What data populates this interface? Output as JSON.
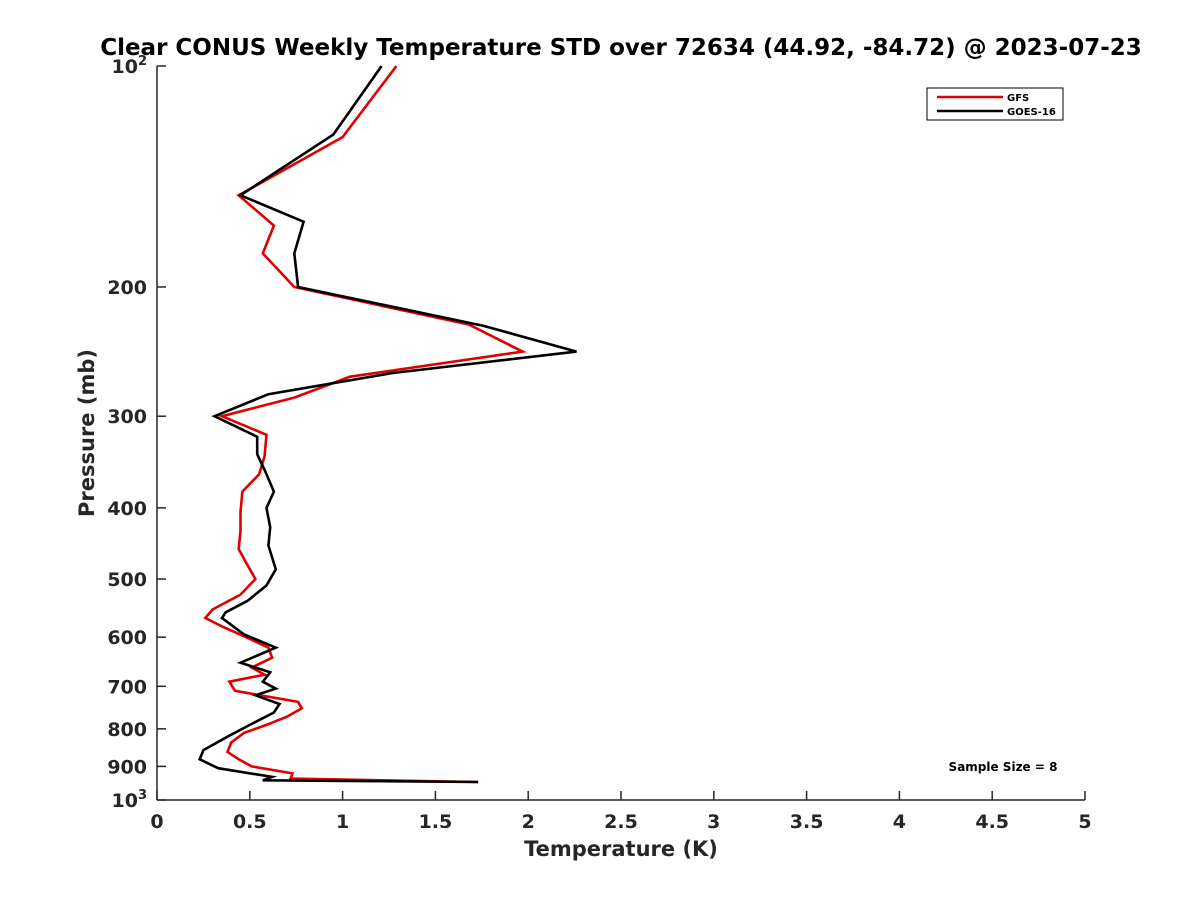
{
  "chart_data": {
    "type": "line",
    "title": "Clear CONUS Weekly Temperature STD over 72634 (44.92, -84.72) @ 2023-07-23",
    "xlabel": "Temperature (K)",
    "ylabel": "Pressure (mb)",
    "xlim": [
      0,
      5
    ],
    "ylim": [
      100,
      1000
    ],
    "y_scale": "log",
    "y_reversed": true,
    "x_ticks": [
      "0",
      "0.5",
      "1",
      "1.5",
      "2",
      "2.5",
      "3",
      "3.5",
      "4",
      "4.5",
      "5"
    ],
    "x_tick_values": [
      0,
      0.5,
      1,
      1.5,
      2,
      2.5,
      3,
      3.5,
      4,
      4.5,
      5
    ],
    "y_ticks": [
      {
        "value": 100,
        "base": "10",
        "exp": "2"
      },
      {
        "value": 200,
        "label": "200"
      },
      {
        "value": 300,
        "label": "300"
      },
      {
        "value": 400,
        "label": "400"
      },
      {
        "value": 500,
        "label": "500"
      },
      {
        "value": 600,
        "label": "600"
      },
      {
        "value": 700,
        "label": "700"
      },
      {
        "value": 800,
        "label": "800"
      },
      {
        "value": 900,
        "label": "900"
      },
      {
        "value": 1000,
        "base": "10",
        "exp": "3"
      }
    ],
    "legend": {
      "position": "top-right"
    },
    "annotation": "Sample Size = 8",
    "series": [
      {
        "name": "GFS",
        "color": "#e00000",
        "points": [
          [
            1.29,
            100
          ],
          [
            1.0,
            125
          ],
          [
            0.44,
            150
          ],
          [
            0.63,
            165
          ],
          [
            0.57,
            180
          ],
          [
            0.74,
            200
          ],
          [
            1.68,
            225
          ],
          [
            1.97,
            245
          ],
          [
            1.04,
            265
          ],
          [
            0.74,
            283
          ],
          [
            0.35,
            300
          ],
          [
            0.59,
            318
          ],
          [
            0.58,
            340
          ],
          [
            0.55,
            360
          ],
          [
            0.46,
            380
          ],
          [
            0.45,
            405
          ],
          [
            0.45,
            430
          ],
          [
            0.44,
            455
          ],
          [
            0.48,
            475
          ],
          [
            0.53,
            500
          ],
          [
            0.45,
            525
          ],
          [
            0.3,
            550
          ],
          [
            0.26,
            565
          ],
          [
            0.35,
            580
          ],
          [
            0.48,
            600
          ],
          [
            0.6,
            620
          ],
          [
            0.62,
            640
          ],
          [
            0.51,
            660
          ],
          [
            0.58,
            675
          ],
          [
            0.39,
            690
          ],
          [
            0.42,
            710
          ],
          [
            0.76,
            735
          ],
          [
            0.78,
            750
          ],
          [
            0.7,
            770
          ],
          [
            0.59,
            790
          ],
          [
            0.47,
            810
          ],
          [
            0.4,
            835
          ],
          [
            0.38,
            860
          ],
          [
            0.44,
            880
          ],
          [
            0.51,
            900
          ],
          [
            0.73,
            920
          ],
          [
            0.72,
            935
          ],
          [
            1.73,
            945
          ]
        ]
      },
      {
        "name": "GOES-16",
        "color": "#000000",
        "points": [
          [
            1.21,
            100
          ],
          [
            0.95,
            124
          ],
          [
            0.45,
            150
          ],
          [
            0.79,
            163
          ],
          [
            0.74,
            180
          ],
          [
            0.76,
            200
          ],
          [
            1.76,
            226
          ],
          [
            2.26,
            245
          ],
          [
            1.27,
            262
          ],
          [
            0.6,
            280
          ],
          [
            0.31,
            300
          ],
          [
            0.54,
            320
          ],
          [
            0.54,
            338
          ],
          [
            0.58,
            355
          ],
          [
            0.63,
            380
          ],
          [
            0.59,
            400
          ],
          [
            0.61,
            425
          ],
          [
            0.6,
            450
          ],
          [
            0.64,
            485
          ],
          [
            0.59,
            510
          ],
          [
            0.49,
            535
          ],
          [
            0.37,
            555
          ],
          [
            0.35,
            565
          ],
          [
            0.47,
            595
          ],
          [
            0.64,
            620
          ],
          [
            0.45,
            650
          ],
          [
            0.61,
            670
          ],
          [
            0.57,
            690
          ],
          [
            0.64,
            705
          ],
          [
            0.53,
            720
          ],
          [
            0.66,
            740
          ],
          [
            0.63,
            760
          ],
          [
            0.5,
            790
          ],
          [
            0.38,
            820
          ],
          [
            0.25,
            855
          ],
          [
            0.23,
            880
          ],
          [
            0.33,
            905
          ],
          [
            0.62,
            930
          ],
          [
            0.57,
            940
          ],
          [
            1.73,
            945
          ]
        ]
      }
    ]
  }
}
